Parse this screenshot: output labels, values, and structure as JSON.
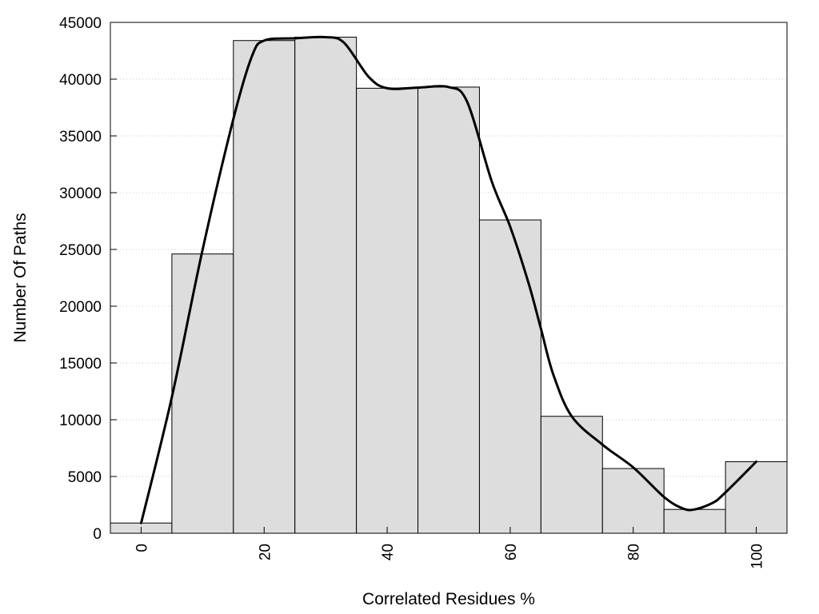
{
  "chart_data": {
    "type": "bar",
    "x": [
      0,
      10,
      20,
      30,
      40,
      50,
      60,
      70,
      80,
      90,
      100
    ],
    "values": [
      900,
      24600,
      43400,
      43700,
      39200,
      39300,
      27600,
      10300,
      5700,
      2100,
      6300
    ],
    "bin_width": 10,
    "series": [
      {
        "type": "line",
        "x": [
          0,
          5,
          10,
          15,
          18,
          20,
          25,
          30,
          33,
          37,
          40,
          45,
          50,
          53,
          57,
          60,
          63,
          65,
          67,
          70,
          75,
          80,
          85,
          88,
          90,
          93,
          95,
          100
        ],
        "values": [
          900,
          12000,
          25000,
          36500,
          42000,
          43400,
          43600,
          43700,
          43200,
          40200,
          39200,
          39250,
          39300,
          38000,
          31000,
          27000,
          22000,
          18000,
          14000,
          10300,
          7800,
          5800,
          3200,
          2200,
          2100,
          2700,
          3600,
          6300
        ]
      }
    ],
    "xlabel": "Correlated Residues %",
    "ylabel": "Number Of Paths",
    "xlim": [
      -5,
      105
    ],
    "ylim": [
      0,
      45000
    ],
    "x_ticks": [
      "0",
      "20",
      "40",
      "60",
      "80",
      "100"
    ],
    "x_tick_values": [
      0,
      20,
      40,
      60,
      80,
      100
    ],
    "y_ticks": [
      "0",
      "5000",
      "10000",
      "15000",
      "20000",
      "25000",
      "30000",
      "35000",
      "40000",
      "45000"
    ],
    "y_tick_values": [
      0,
      5000,
      10000,
      15000,
      20000,
      25000,
      30000,
      35000,
      40000,
      45000
    ],
    "grid": "horizontal dotted",
    "bar_color": "#dddddd",
    "line_color": "#000000"
  }
}
